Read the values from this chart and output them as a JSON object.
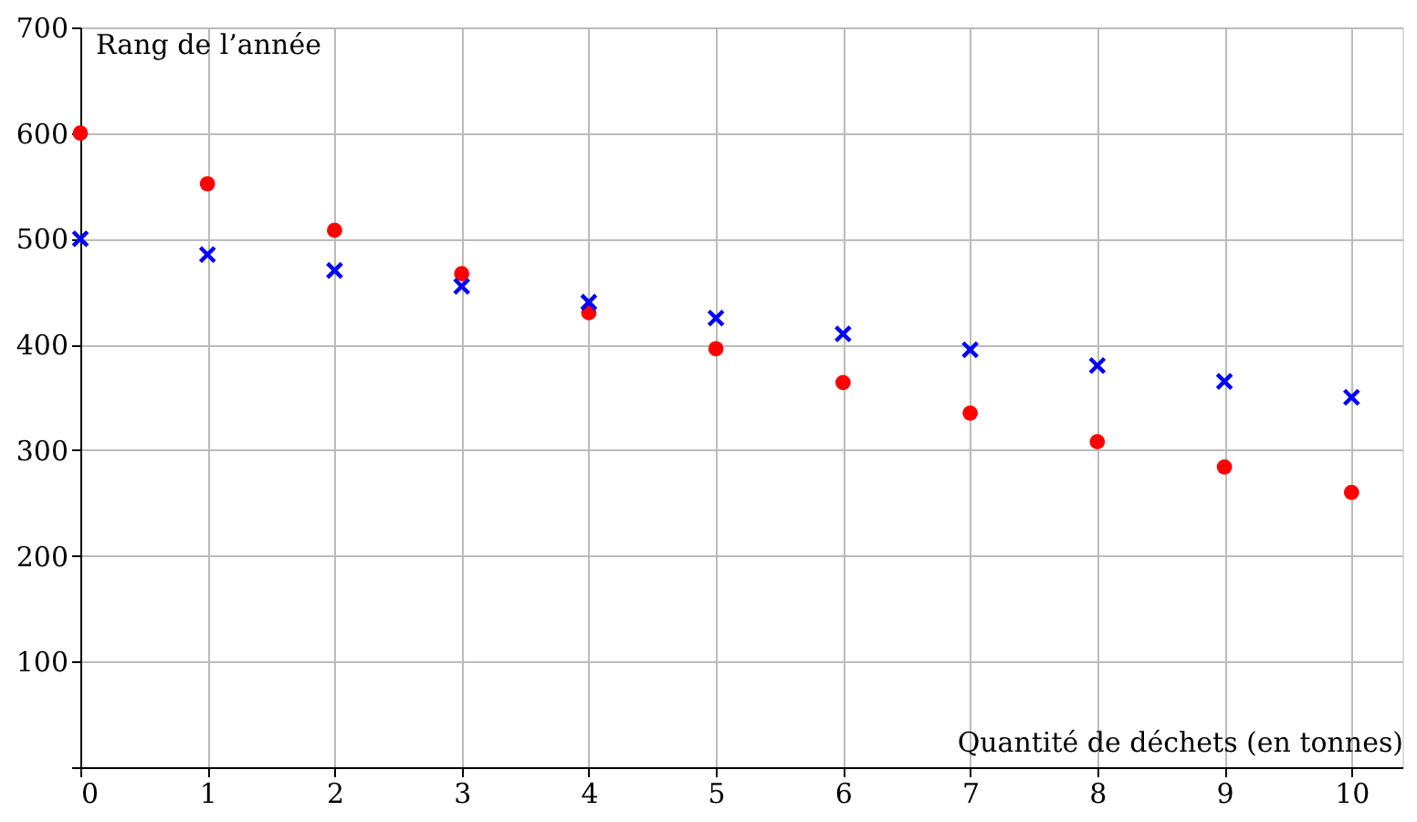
{
  "chart_data": {
    "type": "scatter",
    "xlabel": "Quantité de déchets (en tonnes)",
    "ylabel": "Rang de l’année",
    "x": [
      0,
      1,
      2,
      3,
      4,
      5,
      6,
      7,
      8,
      9,
      10
    ],
    "series": [
      {
        "color": "#ff0000",
        "marker": "circle",
        "values": [
          600,
          552,
          508,
          467,
          430,
          396,
          364,
          335,
          308,
          284,
          260
        ]
      },
      {
        "color": "#0000ff",
        "marker": "cross",
        "values": [
          500,
          485,
          470,
          455,
          440,
          425,
          410,
          395,
          380,
          365,
          350
        ]
      }
    ],
    "xlim": [
      0,
      10.4
    ],
    "ylim": [
      0,
      700
    ],
    "xticks": [
      0,
      1,
      2,
      3,
      4,
      5,
      6,
      7,
      8,
      9,
      10
    ],
    "yticks": [
      {
        "value": 0,
        "label": null
      },
      100,
      200,
      300,
      400,
      500,
      600,
      700
    ],
    "grid": true
  }
}
